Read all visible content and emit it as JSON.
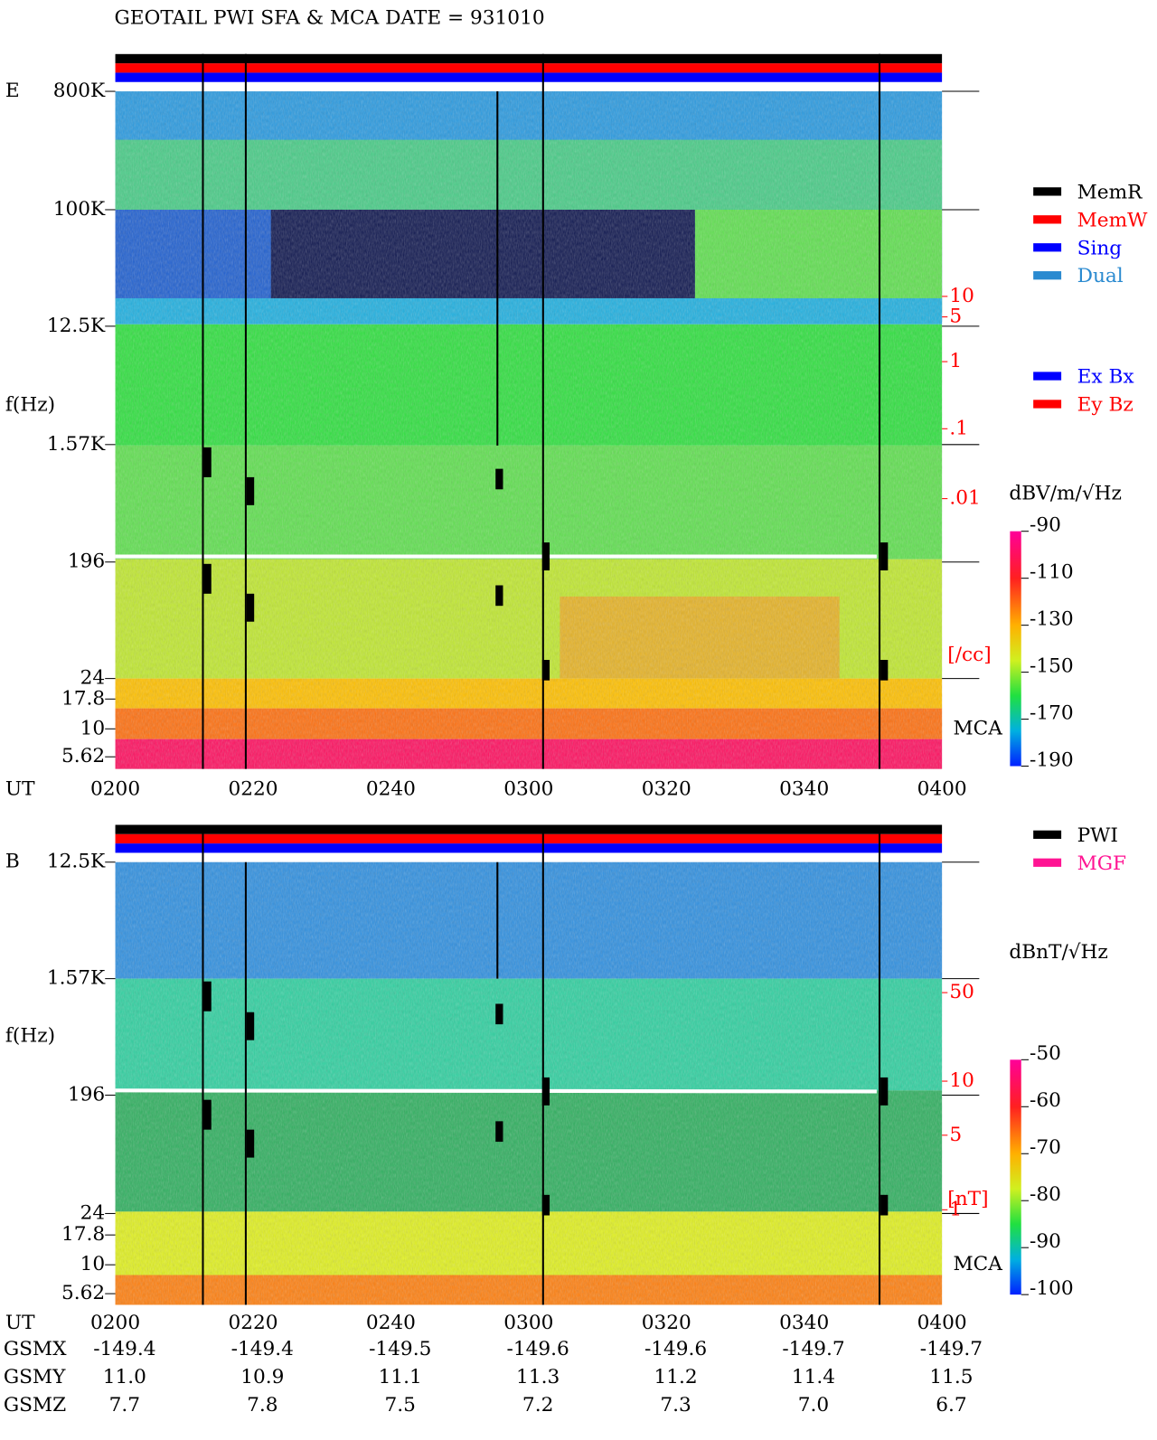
{
  "header": {
    "title": "GEOTAIL  PWI SFA & MCA   DATE = 931010"
  },
  "panels": [
    {
      "label": "E",
      "y_axis_label": "f(Hz)",
      "y_ticks": [
        "800K",
        "100K",
        "12.5K",
        "1.57K",
        "196",
        "24",
        "17.8",
        "10",
        "5.62"
      ],
      "x_axis_label": "UT",
      "x_ticks": [
        "0200",
        "0220",
        "0240",
        "0300",
        "0320",
        "0340",
        "0400"
      ],
      "density_ticks": [
        "10",
        "5",
        "1",
        ".1",
        ".01"
      ],
      "density_unit": "[/cc]",
      "mca_label": "MCA",
      "colorbar_title": "dBV/m/√Hz",
      "colorbar_ticks": [
        -90,
        -110,
        -130,
        -150,
        -170,
        -190
      ]
    },
    {
      "label": "B",
      "y_axis_label": "f(Hz)",
      "y_ticks": [
        "12.5K",
        "1.57K",
        "196",
        "24",
        "17.8",
        "10",
        "5.62"
      ],
      "x_axis_label": "UT",
      "x_ticks": [
        "0200",
        "0220",
        "0240",
        "0300",
        "0320",
        "0340",
        "0400"
      ],
      "density_ticks": [
        "50",
        "10",
        "5",
        "1"
      ],
      "density_unit": "[nT]",
      "mca_label": "MCA",
      "colorbar_title": "dBnT/√Hz",
      "colorbar_ticks": [
        -50,
        -60,
        -70,
        -80,
        -90,
        -100
      ]
    }
  ],
  "legend": {
    "mode": [
      {
        "name": "MemR",
        "color": "#000000"
      },
      {
        "name": "MemW",
        "color": "#ff0000"
      },
      {
        "name": "Sing",
        "color": "#0000ff"
      },
      {
        "name": "Dual",
        "color": "#2a8ad0"
      }
    ],
    "components": [
      {
        "name": "Ex Bx",
        "color": "#0000ff"
      },
      {
        "name": "Ey Bz",
        "color": "#ff0000"
      }
    ],
    "source": [
      {
        "name": "PWI",
        "color": "#000000"
      },
      {
        "name": "MGF",
        "color": "#ff1493"
      }
    ]
  },
  "orbit": {
    "labels": [
      "GSMX",
      "GSMY",
      "GSMZ"
    ],
    "rows": [
      [
        "-149.4",
        "-149.4",
        "-149.5",
        "-149.6",
        "-149.6",
        "-149.7",
        "-149.7"
      ],
      [
        "11.0",
        "10.9",
        "11.1",
        "11.3",
        "11.2",
        "11.4",
        "11.5"
      ],
      [
        "7.7",
        "7.8",
        "7.5",
        "7.2",
        "7.3",
        "7.0",
        "6.7"
      ]
    ]
  }
}
